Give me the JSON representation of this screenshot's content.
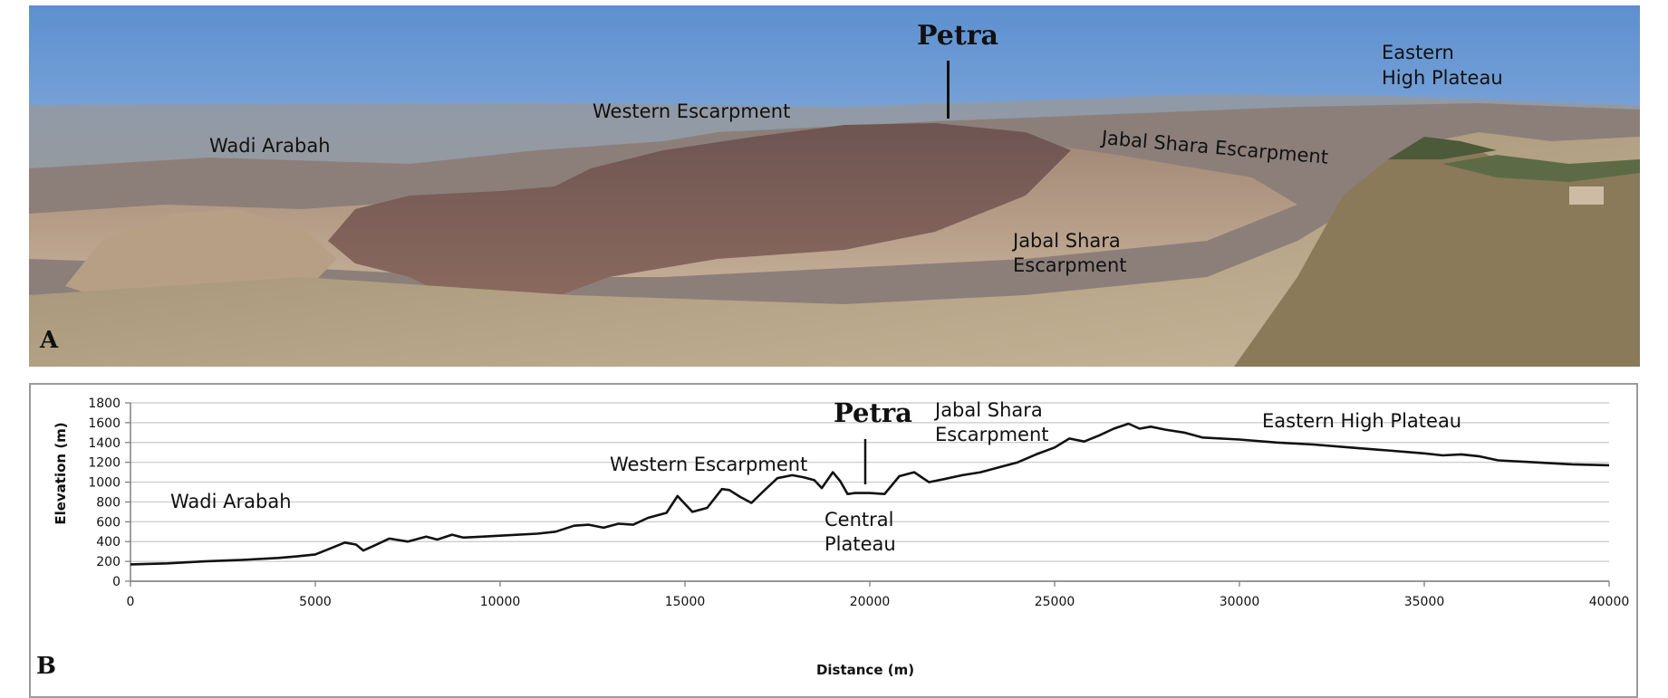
{
  "panel_a": {
    "letter": "A",
    "labels": {
      "wadi_arabah": "Wadi Arabah",
      "western_escarpment": "Western Escarpment",
      "petra": "Petra",
      "jabal_shara_escarpment_upper": "Jabal Shara Escarpment",
      "jabal_shara_line1": "Jabal Shara",
      "jabal_shara_line2": "Escarpment",
      "eastern_line1": "Eastern",
      "eastern_line2": "High Plateau"
    }
  },
  "panel_b": {
    "letter": "B",
    "annotations": {
      "wadi_arabah": "Wadi Arabah",
      "western_escarpment": "Western Escarpment",
      "petra": "Petra",
      "central_line1": "Central",
      "central_line2": "Plateau",
      "jabal_line1": "Jabal Shara",
      "jabal_line2": "Escarpment",
      "eastern": "Eastern High Plateau"
    }
  },
  "chart_data": {
    "type": "line",
    "xlabel": "Distance (m)",
    "ylabel": "Elevation (m)",
    "xlim": [
      0,
      40000
    ],
    "ylim": [
      0,
      1800
    ],
    "xticks": [
      0,
      5000,
      10000,
      15000,
      20000,
      25000,
      30000,
      35000,
      40000
    ],
    "yticks": [
      0,
      200,
      400,
      600,
      800,
      1000,
      1200,
      1400,
      1600,
      1800
    ],
    "grid": true,
    "line_color": "#111111",
    "series": [
      {
        "x": [
          0,
          1000,
          2000,
          3000,
          4000,
          4500,
          5000,
          5400,
          5800,
          6100,
          6300,
          6600,
          7000,
          7500,
          8000,
          8300,
          8700,
          9000,
          9500,
          10000,
          11000,
          11500,
          12000,
          12400,
          12800,
          13200,
          13600,
          14000,
          14500,
          14800,
          15200,
          15600,
          16000,
          16200,
          16500,
          16800,
          17100,
          17500,
          17900,
          18200,
          18500,
          18700,
          19000,
          19200,
          19400,
          19600,
          20000,
          20400,
          20800,
          21200,
          21600,
          22000,
          22500,
          23000,
          23500,
          24000,
          24500,
          25000,
          25400,
          25800,
          26200,
          26600,
          27000,
          27300,
          27600,
          28000,
          28500,
          29000,
          30000,
          31000,
          32000,
          33000,
          34000,
          35000,
          35500,
          36000,
          36500,
          37000,
          38000,
          39000,
          40000
        ],
        "y": [
          170,
          180,
          200,
          215,
          235,
          250,
          270,
          330,
          390,
          370,
          310,
          360,
          430,
          400,
          450,
          420,
          470,
          440,
          450,
          460,
          480,
          500,
          560,
          570,
          540,
          580,
          570,
          640,
          690,
          860,
          700,
          740,
          930,
          920,
          850,
          790,
          900,
          1040,
          1070,
          1050,
          1020,
          940,
          1100,
          1010,
          880,
          890,
          890,
          880,
          1060,
          1100,
          1000,
          1030,
          1070,
          1100,
          1150,
          1200,
          1280,
          1350,
          1440,
          1410,
          1470,
          1540,
          1590,
          1540,
          1560,
          1530,
          1500,
          1450,
          1430,
          1400,
          1380,
          1350,
          1320,
          1290,
          1270,
          1280,
          1260,
          1220,
          1200,
          1180,
          1170
        ]
      }
    ]
  }
}
